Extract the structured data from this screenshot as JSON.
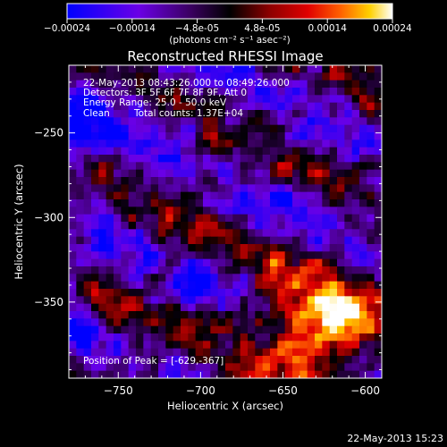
{
  "colorbar": {
    "ticks": [
      "-0.00024",
      "-0.00014",
      "-4.8e-05",
      "4.8e-05",
      "0.00014",
      "0.00024"
    ],
    "units": "(photons cm⁻² s⁻¹ asec⁻²)"
  },
  "chart_data": {
    "type": "heatmap",
    "title": "Reconstructed RHESSI Image",
    "xlabel": "Heliocentric X (arcsec)",
    "ylabel": "Heliocentric Y (arcsec)",
    "xlim": [
      -780,
      -590
    ],
    "ylim": [
      -395,
      -210
    ],
    "x_ticks": [
      -750,
      -700,
      -650,
      -600
    ],
    "y_ticks": [
      -250,
      -300,
      -350
    ],
    "x_tick_labels": [
      "−750",
      "−700",
      "−650",
      "−600"
    ],
    "y_tick_labels": [
      "−250",
      "−300",
      "−350"
    ],
    "colorscale_range": [
      -0.00024,
      0.00024
    ],
    "colors": {
      "colorscale": [
        "#0000ff",
        "#6a00e6",
        "#3a0060",
        "#000000",
        "#7a0000",
        "#e00000",
        "#ff6000",
        "#ffd000",
        "#ffffff"
      ],
      "background": "#000000",
      "foreground": "#ffffff"
    },
    "annotations": [
      "22-May-2013 08:43:26.000 to 08:49:26.000",
      "Detectors: 3F 5F 6F 7F 8F 9F, Att 0",
      "Energy Range: 25.0 - 50.0 keV",
      "Clean",
      "Total counts: 1.37E+04"
    ],
    "peak_label": "Position of Peak = [-629,-367]",
    "peak_position": [
      -629,
      -367
    ]
  },
  "footer": {
    "timestamp": "22-May-2013 15:23"
  }
}
